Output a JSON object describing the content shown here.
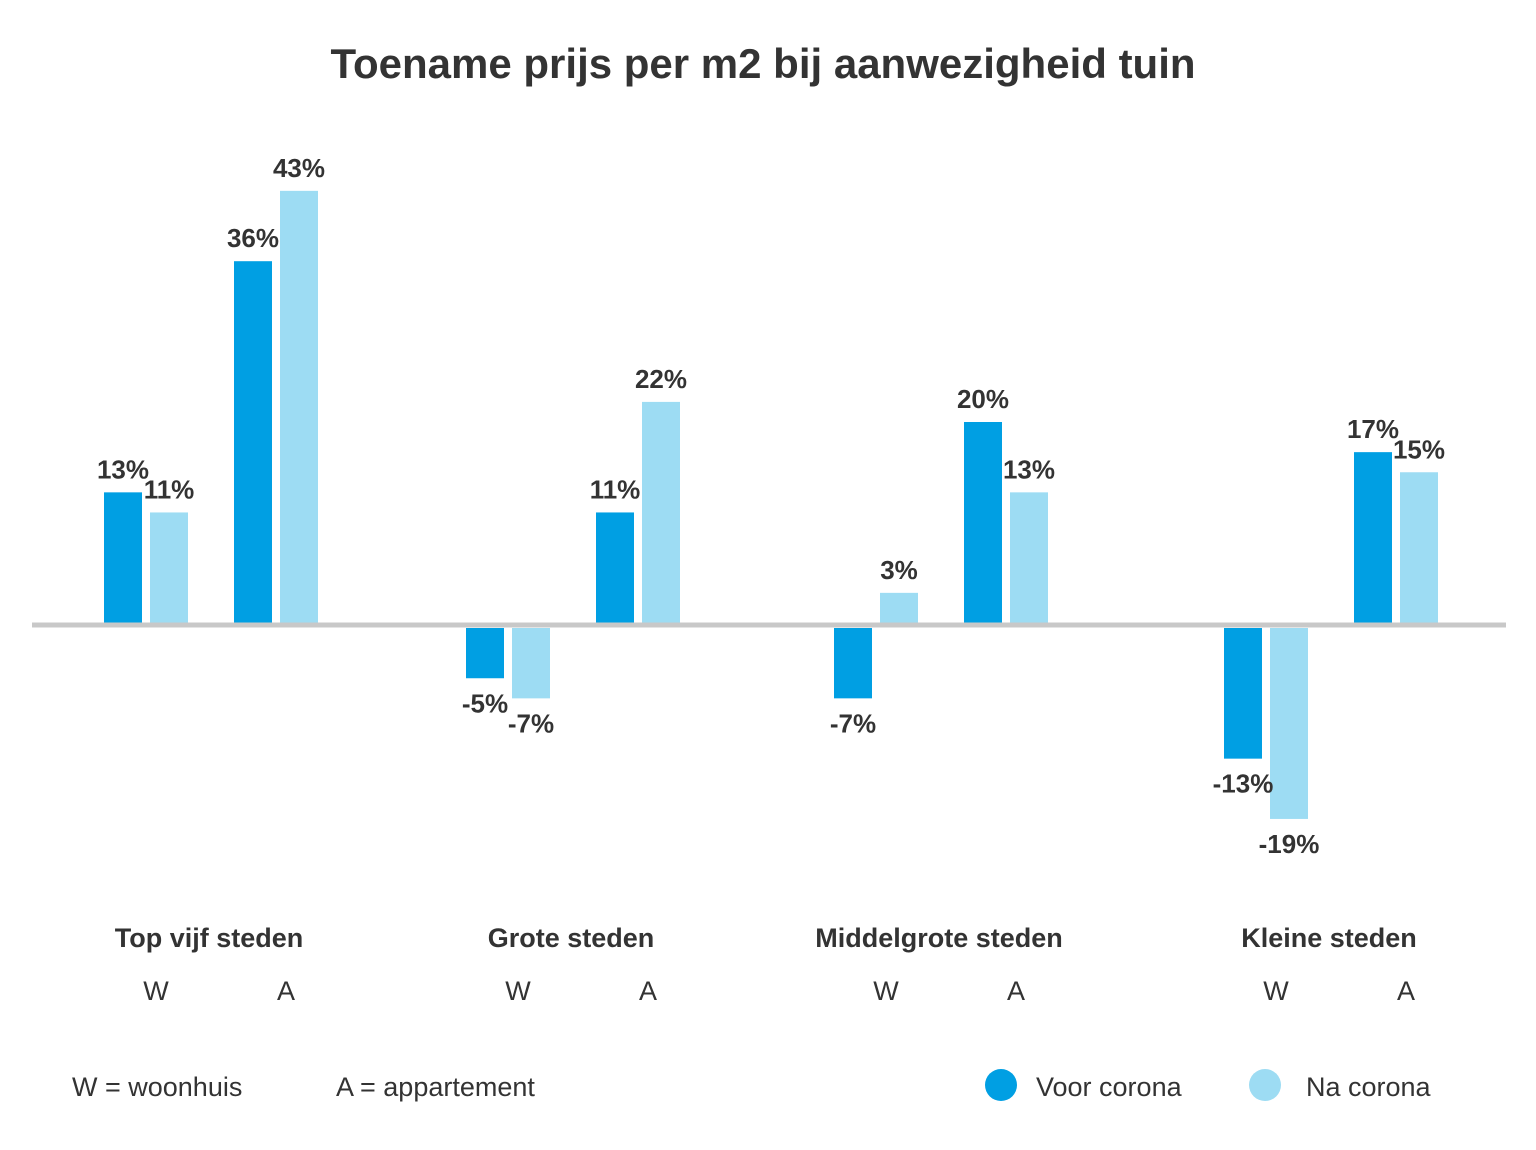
{
  "chart_data": {
    "type": "bar",
    "title": "Toename prijs per m2 bij aanwezigheid tuin",
    "groups": [
      {
        "name": "Top vijf steden",
        "categories": [
          "W",
          "A"
        ],
        "before": [
          13,
          36
        ],
        "after": [
          11,
          43
        ]
      },
      {
        "name": "Grote steden",
        "categories": [
          "W",
          "A"
        ],
        "before": [
          -5,
          11
        ],
        "after": [
          -7,
          22
        ]
      },
      {
        "name": "Middelgrote steden",
        "categories": [
          "W",
          "A"
        ],
        "before": [
          -7,
          20
        ],
        "after": [
          3,
          13
        ]
      },
      {
        "name": "Kleine steden",
        "categories": [
          "W",
          "A"
        ],
        "before": [
          -13,
          17
        ],
        "after": [
          -19,
          15
        ]
      }
    ],
    "series": [
      {
        "name": "Voor corona",
        "color": "#009FE3"
      },
      {
        "name": "Na corona",
        "color": "#9DDCF3"
      }
    ],
    "unit": "%",
    "notes": [
      "W = woonhuis",
      "A = appartement"
    ],
    "axis_color": "#C8C8C8"
  }
}
